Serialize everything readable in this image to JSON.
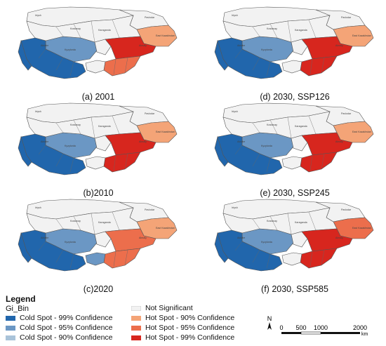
{
  "colors": {
    "cold99": "#2166ac",
    "cold95": "#6b97c4",
    "cold90": "#a9c3d9",
    "ns": "#f2f2f2",
    "hot90": "#f4a477",
    "hot95": "#ec6e4c",
    "hot99": "#d7261e"
  },
  "panels": [
    {
      "caption": "(a) 2001",
      "west": "cold99",
      "mid": "cold95",
      "east_upper": "hot90",
      "east_center": "hot99",
      "south_east": "hot95",
      "south_mid": "ns",
      "region_labels": [
        "Irtysh",
        "Pavlodar",
        "East Kazakhstan",
        "Karaganda",
        "Kostanay",
        "Aktobe",
        "Kyzylorda",
        "Almaty"
      ]
    },
    {
      "caption": "(d) 2030, SSP126",
      "west": "cold99",
      "mid": "cold95",
      "east_upper": "hot90",
      "east_center": "hot99",
      "south_east": "hot99",
      "south_mid": "ns",
      "region_labels": [
        "Irtysh",
        "Pavlodar",
        "East Kazakhstan",
        "Karaganda",
        "Kostanay",
        "Aktobe",
        "Kyzylorda",
        "Almaty"
      ]
    },
    {
      "caption": "(b)2010",
      "west": "cold99",
      "mid": "cold95",
      "east_upper": "hot90",
      "east_center": "hot99",
      "south_east": "hot99",
      "south_mid": "ns",
      "region_labels": [
        "Irtysh",
        "Pavlodar",
        "East Kazakhstan",
        "Karaganda",
        "Kostanay",
        "Aktobe",
        "Kyzylorda",
        "Almaty"
      ]
    },
    {
      "caption": "(e) 2030, SSP245",
      "west": "cold99",
      "mid": "cold95",
      "east_upper": "hot90",
      "east_center": "hot99",
      "south_east": "hot99",
      "south_mid": "ns",
      "region_labels": [
        "Irtysh",
        "Pavlodar",
        "East Kazakhstan",
        "Karaganda",
        "Kostanay",
        "Aktobe",
        "Kyzylorda",
        "Almaty"
      ]
    },
    {
      "caption": "(c)2020",
      "west": "cold99",
      "mid": "cold95",
      "east_upper": "hot90",
      "east_center": "hot95",
      "south_east": "hot95",
      "south_mid": "cold95",
      "region_labels": [
        "Irtysh",
        "Pavlodar",
        "East Kazakhstan",
        "Karaganda",
        "Kostanay",
        "Aktobe",
        "Kyzylorda",
        "Almaty"
      ]
    },
    {
      "caption": "(f) 2030, SSP585",
      "west": "cold99",
      "mid": "cold95",
      "east_upper": "hot95",
      "east_center": "hot99",
      "south_east": "hot99",
      "south_mid": "ns",
      "region_labels": [
        "Irtysh",
        "Pavlodar",
        "East Kazakhstan",
        "Karaganda",
        "Kostanay",
        "Aktobe",
        "Kyzylorda",
        "Almaty"
      ]
    }
  ],
  "legend": {
    "title": "Legend",
    "subtitle": "Gi_Bin",
    "items": [
      {
        "label": "Cold Spot - 99% Confidence",
        "color": "cold99"
      },
      {
        "label": "Cold Spot - 95% Confidence",
        "color": "cold95"
      },
      {
        "label": "Cold Spot - 90% Confidence",
        "color": "cold90"
      },
      {
        "label": "Not Significant",
        "color": "ns"
      },
      {
        "label": "Hot Spot - 90% Confidence",
        "color": "hot90"
      },
      {
        "label": "Hot Spot - 95% Confidence",
        "color": "hot95"
      },
      {
        "label": "Hot Spot - 99% Confidence",
        "color": "hot99"
      }
    ]
  },
  "scale": {
    "north": "N",
    "ticks": [
      "0",
      "500",
      "1000",
      "2000"
    ],
    "unit": "km"
  }
}
